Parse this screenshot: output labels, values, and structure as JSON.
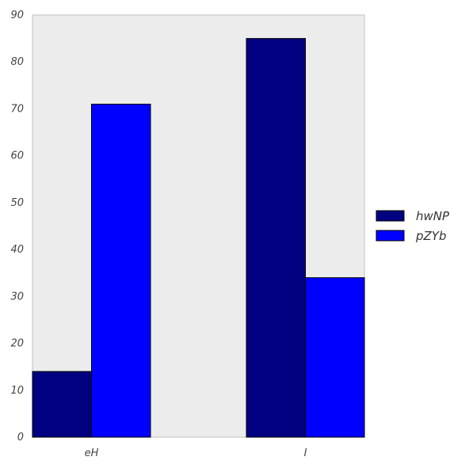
{
  "chart_data": {
    "type": "bar",
    "categories": [
      "eH",
      "I"
    ],
    "series": [
      {
        "name": "hwNP",
        "values": [
          14,
          85
        ],
        "color": "#000080"
      },
      {
        "name": "pZYb",
        "values": [
          71,
          34
        ],
        "color": "#0000ff"
      }
    ],
    "ylim": [
      0,
      90
    ],
    "yticks": [
      0,
      10,
      20,
      30,
      40,
      50,
      60,
      70,
      80,
      90
    ],
    "grid": false,
    "legend_position": "right",
    "plot_background": "#ececec"
  }
}
